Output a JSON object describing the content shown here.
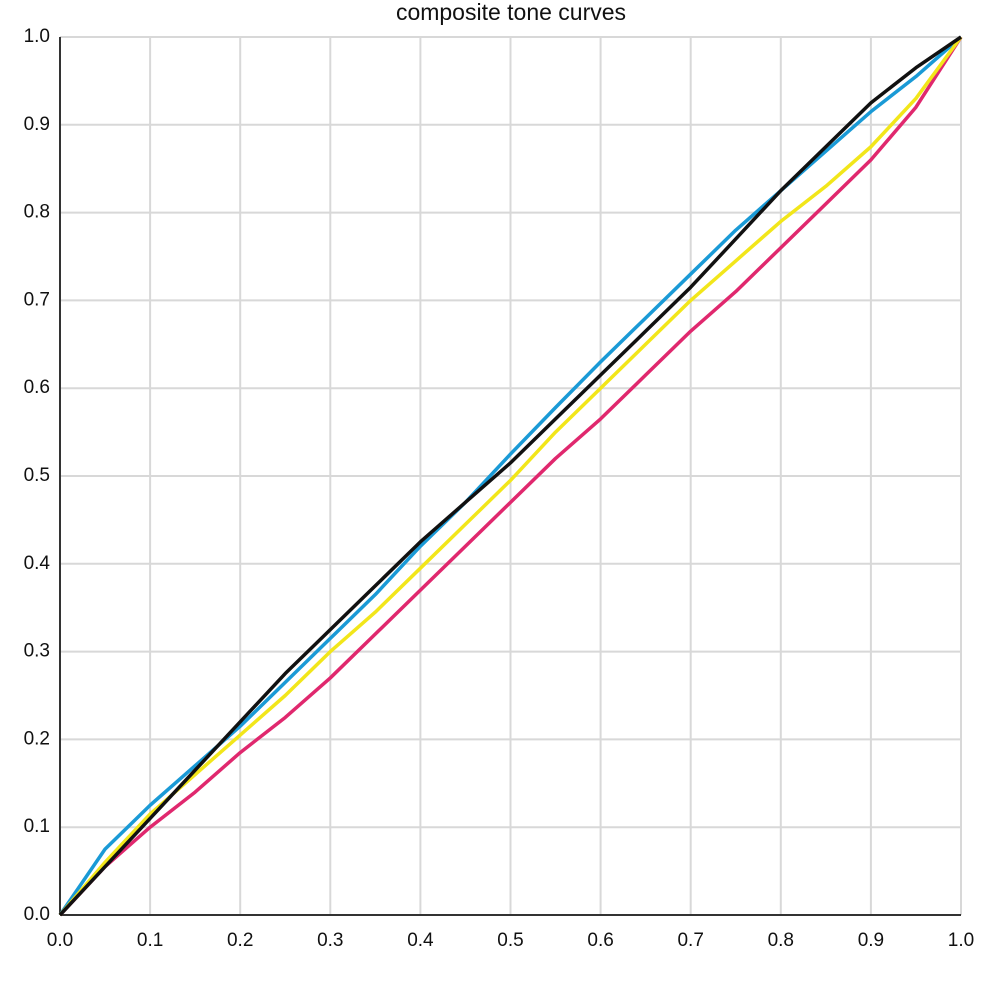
{
  "chart_data": {
    "type": "line",
    "title": "composite tone curves",
    "x": [
      0,
      0.05,
      0.1,
      0.15,
      0.2,
      0.25,
      0.3,
      0.35,
      0.4,
      0.45,
      0.5,
      0.55,
      0.6,
      0.65,
      0.7,
      0.75,
      0.8,
      0.85,
      0.9,
      0.95,
      1
    ],
    "series": [
      {
        "color": "#1a9ad6",
        "values": [
          0,
          0.075,
          0.125,
          0.17,
          0.215,
          0.265,
          0.315,
          0.365,
          0.42,
          0.47,
          0.525,
          0.578,
          0.63,
          0.68,
          0.73,
          0.78,
          0.825,
          0.87,
          0.915,
          0.955,
          1
        ]
      },
      {
        "color": "#e0286e",
        "values": [
          0,
          0.055,
          0.1,
          0.14,
          0.185,
          0.225,
          0.27,
          0.32,
          0.37,
          0.42,
          0.47,
          0.52,
          0.565,
          0.615,
          0.665,
          0.71,
          0.76,
          0.81,
          0.86,
          0.92,
          1
        ]
      },
      {
        "color": "#f2e61a",
        "values": [
          0,
          0.06,
          0.115,
          0.16,
          0.205,
          0.25,
          0.3,
          0.345,
          0.395,
          0.445,
          0.495,
          0.55,
          0.6,
          0.65,
          0.7,
          0.745,
          0.79,
          0.83,
          0.875,
          0.93,
          1
        ]
      },
      {
        "color": "#111111",
        "values": [
          0,
          0.055,
          0.11,
          0.165,
          0.22,
          0.275,
          0.325,
          0.375,
          0.425,
          0.47,
          0.515,
          0.565,
          0.615,
          0.665,
          0.715,
          0.77,
          0.825,
          0.875,
          0.925,
          0.965,
          1
        ]
      }
    ],
    "xlim": [
      0,
      1
    ],
    "ylim": [
      0,
      1
    ],
    "xticks": [
      {
        "value": 0,
        "label": "0.0"
      },
      0.1,
      0.2,
      0.3,
      0.4,
      0.5,
      0.6,
      0.7,
      0.8,
      0.9,
      {
        "value": 1,
        "label": "1.0"
      }
    ],
    "yticks": [
      {
        "value": 0,
        "label": "0.0"
      },
      0.1,
      0.2,
      0.3,
      0.4,
      0.5,
      0.6,
      0.7,
      0.8,
      0.9,
      {
        "value": 1,
        "label": "1.0"
      }
    ],
    "grid": true
  }
}
